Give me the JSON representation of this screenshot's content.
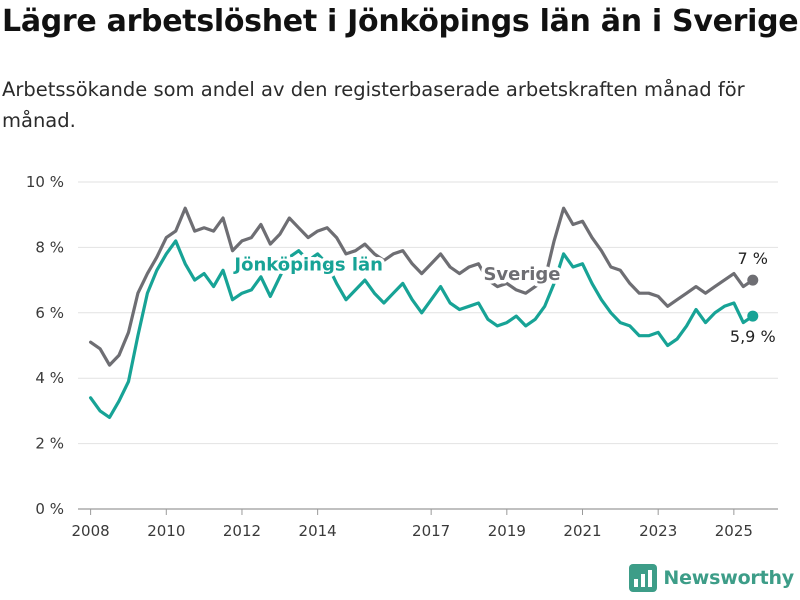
{
  "title": "Lägre arbetslöshet i Jönköpings län än i Sverige",
  "subtitle": "Arbetssökande som andel av den registerbaserade arbetskraften månad för månad.",
  "brand": {
    "name": "Newsworthy",
    "icon": "newsworthy-logo-icon"
  },
  "chart_data": {
    "type": "line",
    "title": "Lägre arbetslöshet i Jönköpings län än i Sverige",
    "subtitle": "Arbetssökande som andel av den registerbaserade arbetskraften månad för månad.",
    "xlabel": "",
    "ylabel": "",
    "x_ticks": [
      "2008",
      "2010",
      "2012",
      "2014",
      "2017",
      "2019",
      "2021",
      "2023",
      "2025"
    ],
    "y_ticks": [
      "0 %",
      "2 %",
      "4 %",
      "6 %",
      "8 %",
      "10 %"
    ],
    "y_tick_values": [
      0,
      2,
      4,
      6,
      8,
      10
    ],
    "ylim": [
      0,
      10
    ],
    "xlim": [
      "2007-09",
      "2026-03"
    ],
    "grid": "horizontal",
    "legend": "inline labels",
    "colors": {
      "sverige": "#6e6e73",
      "jonkoping": "#17a396"
    },
    "series": [
      {
        "name": "Sverige",
        "color": "#6e6e73",
        "end_label": "7 %",
        "points": [
          [
            "2008-01",
            5.1
          ],
          [
            "2008-04",
            4.9
          ],
          [
            "2008-07",
            4.4
          ],
          [
            "2008-10",
            4.7
          ],
          [
            "2009-01",
            5.4
          ],
          [
            "2009-04",
            6.6
          ],
          [
            "2009-07",
            7.2
          ],
          [
            "2009-10",
            7.7
          ],
          [
            "2010-01",
            8.3
          ],
          [
            "2010-04",
            8.5
          ],
          [
            "2010-07",
            9.2
          ],
          [
            "2010-10",
            8.5
          ],
          [
            "2011-01",
            8.6
          ],
          [
            "2011-04",
            8.5
          ],
          [
            "2011-07",
            8.9
          ],
          [
            "2011-10",
            7.9
          ],
          [
            "2012-01",
            8.2
          ],
          [
            "2012-04",
            8.3
          ],
          [
            "2012-07",
            8.7
          ],
          [
            "2012-10",
            8.1
          ],
          [
            "2013-01",
            8.4
          ],
          [
            "2013-04",
            8.9
          ],
          [
            "2013-07",
            8.6
          ],
          [
            "2013-10",
            8.3
          ],
          [
            "2014-01",
            8.5
          ],
          [
            "2014-04",
            8.6
          ],
          [
            "2014-07",
            8.3
          ],
          [
            "2014-10",
            7.8
          ],
          [
            "2015-01",
            7.9
          ],
          [
            "2015-04",
            8.1
          ],
          [
            "2015-07",
            7.8
          ],
          [
            "2015-10",
            7.6
          ],
          [
            "2016-01",
            7.8
          ],
          [
            "2016-04",
            7.9
          ],
          [
            "2016-07",
            7.5
          ],
          [
            "2016-10",
            7.2
          ],
          [
            "2017-01",
            7.5
          ],
          [
            "2017-04",
            7.8
          ],
          [
            "2017-07",
            7.4
          ],
          [
            "2017-10",
            7.2
          ],
          [
            "2018-01",
            7.4
          ],
          [
            "2018-04",
            7.5
          ],
          [
            "2018-07",
            7.0
          ],
          [
            "2018-10",
            6.8
          ],
          [
            "2019-01",
            6.9
          ],
          [
            "2019-04",
            6.7
          ],
          [
            "2019-07",
            6.6
          ],
          [
            "2019-10",
            6.8
          ],
          [
            "2020-01",
            7.0
          ],
          [
            "2020-04",
            8.2
          ],
          [
            "2020-07",
            9.2
          ],
          [
            "2020-10",
            8.7
          ],
          [
            "2021-01",
            8.8
          ],
          [
            "2021-04",
            8.3
          ],
          [
            "2021-07",
            7.9
          ],
          [
            "2021-10",
            7.4
          ],
          [
            "2022-01",
            7.3
          ],
          [
            "2022-04",
            6.9
          ],
          [
            "2022-07",
            6.6
          ],
          [
            "2022-10",
            6.6
          ],
          [
            "2023-01",
            6.5
          ],
          [
            "2023-04",
            6.2
          ],
          [
            "2023-07",
            6.4
          ],
          [
            "2023-10",
            6.6
          ],
          [
            "2024-01",
            6.8
          ],
          [
            "2024-04",
            6.6
          ],
          [
            "2024-07",
            6.8
          ],
          [
            "2024-10",
            7.0
          ],
          [
            "2025-01",
            7.2
          ],
          [
            "2025-04",
            6.8
          ],
          [
            "2025-07",
            7.0
          ]
        ]
      },
      {
        "name": "Jönköpings län",
        "color": "#17a396",
        "end_label": "5,9 %",
        "points": [
          [
            "2008-01",
            3.4
          ],
          [
            "2008-04",
            3.0
          ],
          [
            "2008-07",
            2.8
          ],
          [
            "2008-10",
            3.3
          ],
          [
            "2009-01",
            3.9
          ],
          [
            "2009-04",
            5.3
          ],
          [
            "2009-07",
            6.6
          ],
          [
            "2009-10",
            7.3
          ],
          [
            "2010-01",
            7.8
          ],
          [
            "2010-04",
            8.2
          ],
          [
            "2010-07",
            7.5
          ],
          [
            "2010-10",
            7.0
          ],
          [
            "2011-01",
            7.2
          ],
          [
            "2011-04",
            6.8
          ],
          [
            "2011-07",
            7.3
          ],
          [
            "2011-10",
            6.4
          ],
          [
            "2012-01",
            6.6
          ],
          [
            "2012-04",
            6.7
          ],
          [
            "2012-07",
            7.1
          ],
          [
            "2012-10",
            6.5
          ],
          [
            "2013-01",
            7.1
          ],
          [
            "2013-04",
            7.7
          ],
          [
            "2013-07",
            7.9
          ],
          [
            "2013-10",
            7.6
          ],
          [
            "2014-01",
            7.8
          ],
          [
            "2014-04",
            7.5
          ],
          [
            "2014-07",
            6.9
          ],
          [
            "2014-10",
            6.4
          ],
          [
            "2015-01",
            6.7
          ],
          [
            "2015-04",
            7.0
          ],
          [
            "2015-07",
            6.6
          ],
          [
            "2015-10",
            6.3
          ],
          [
            "2016-01",
            6.6
          ],
          [
            "2016-04",
            6.9
          ],
          [
            "2016-07",
            6.4
          ],
          [
            "2016-10",
            6.0
          ],
          [
            "2017-01",
            6.4
          ],
          [
            "2017-04",
            6.8
          ],
          [
            "2017-07",
            6.3
          ],
          [
            "2017-10",
            6.1
          ],
          [
            "2018-01",
            6.2
          ],
          [
            "2018-04",
            6.3
          ],
          [
            "2018-07",
            5.8
          ],
          [
            "2018-10",
            5.6
          ],
          [
            "2019-01",
            5.7
          ],
          [
            "2019-04",
            5.9
          ],
          [
            "2019-07",
            5.6
          ],
          [
            "2019-10",
            5.8
          ],
          [
            "2020-01",
            6.2
          ],
          [
            "2020-04",
            6.9
          ],
          [
            "2020-07",
            7.8
          ],
          [
            "2020-10",
            7.4
          ],
          [
            "2021-01",
            7.5
          ],
          [
            "2021-04",
            6.9
          ],
          [
            "2021-07",
            6.4
          ],
          [
            "2021-10",
            6.0
          ],
          [
            "2022-01",
            5.7
          ],
          [
            "2022-04",
            5.6
          ],
          [
            "2022-07",
            5.3
          ],
          [
            "2022-10",
            5.3
          ],
          [
            "2023-01",
            5.4
          ],
          [
            "2023-04",
            5.0
          ],
          [
            "2023-07",
            5.2
          ],
          [
            "2023-10",
            5.6
          ],
          [
            "2024-01",
            6.1
          ],
          [
            "2024-04",
            5.7
          ],
          [
            "2024-07",
            6.0
          ],
          [
            "2024-10",
            6.2
          ],
          [
            "2025-01",
            6.3
          ],
          [
            "2025-04",
            5.7
          ],
          [
            "2025-07",
            5.9
          ]
        ]
      }
    ]
  }
}
